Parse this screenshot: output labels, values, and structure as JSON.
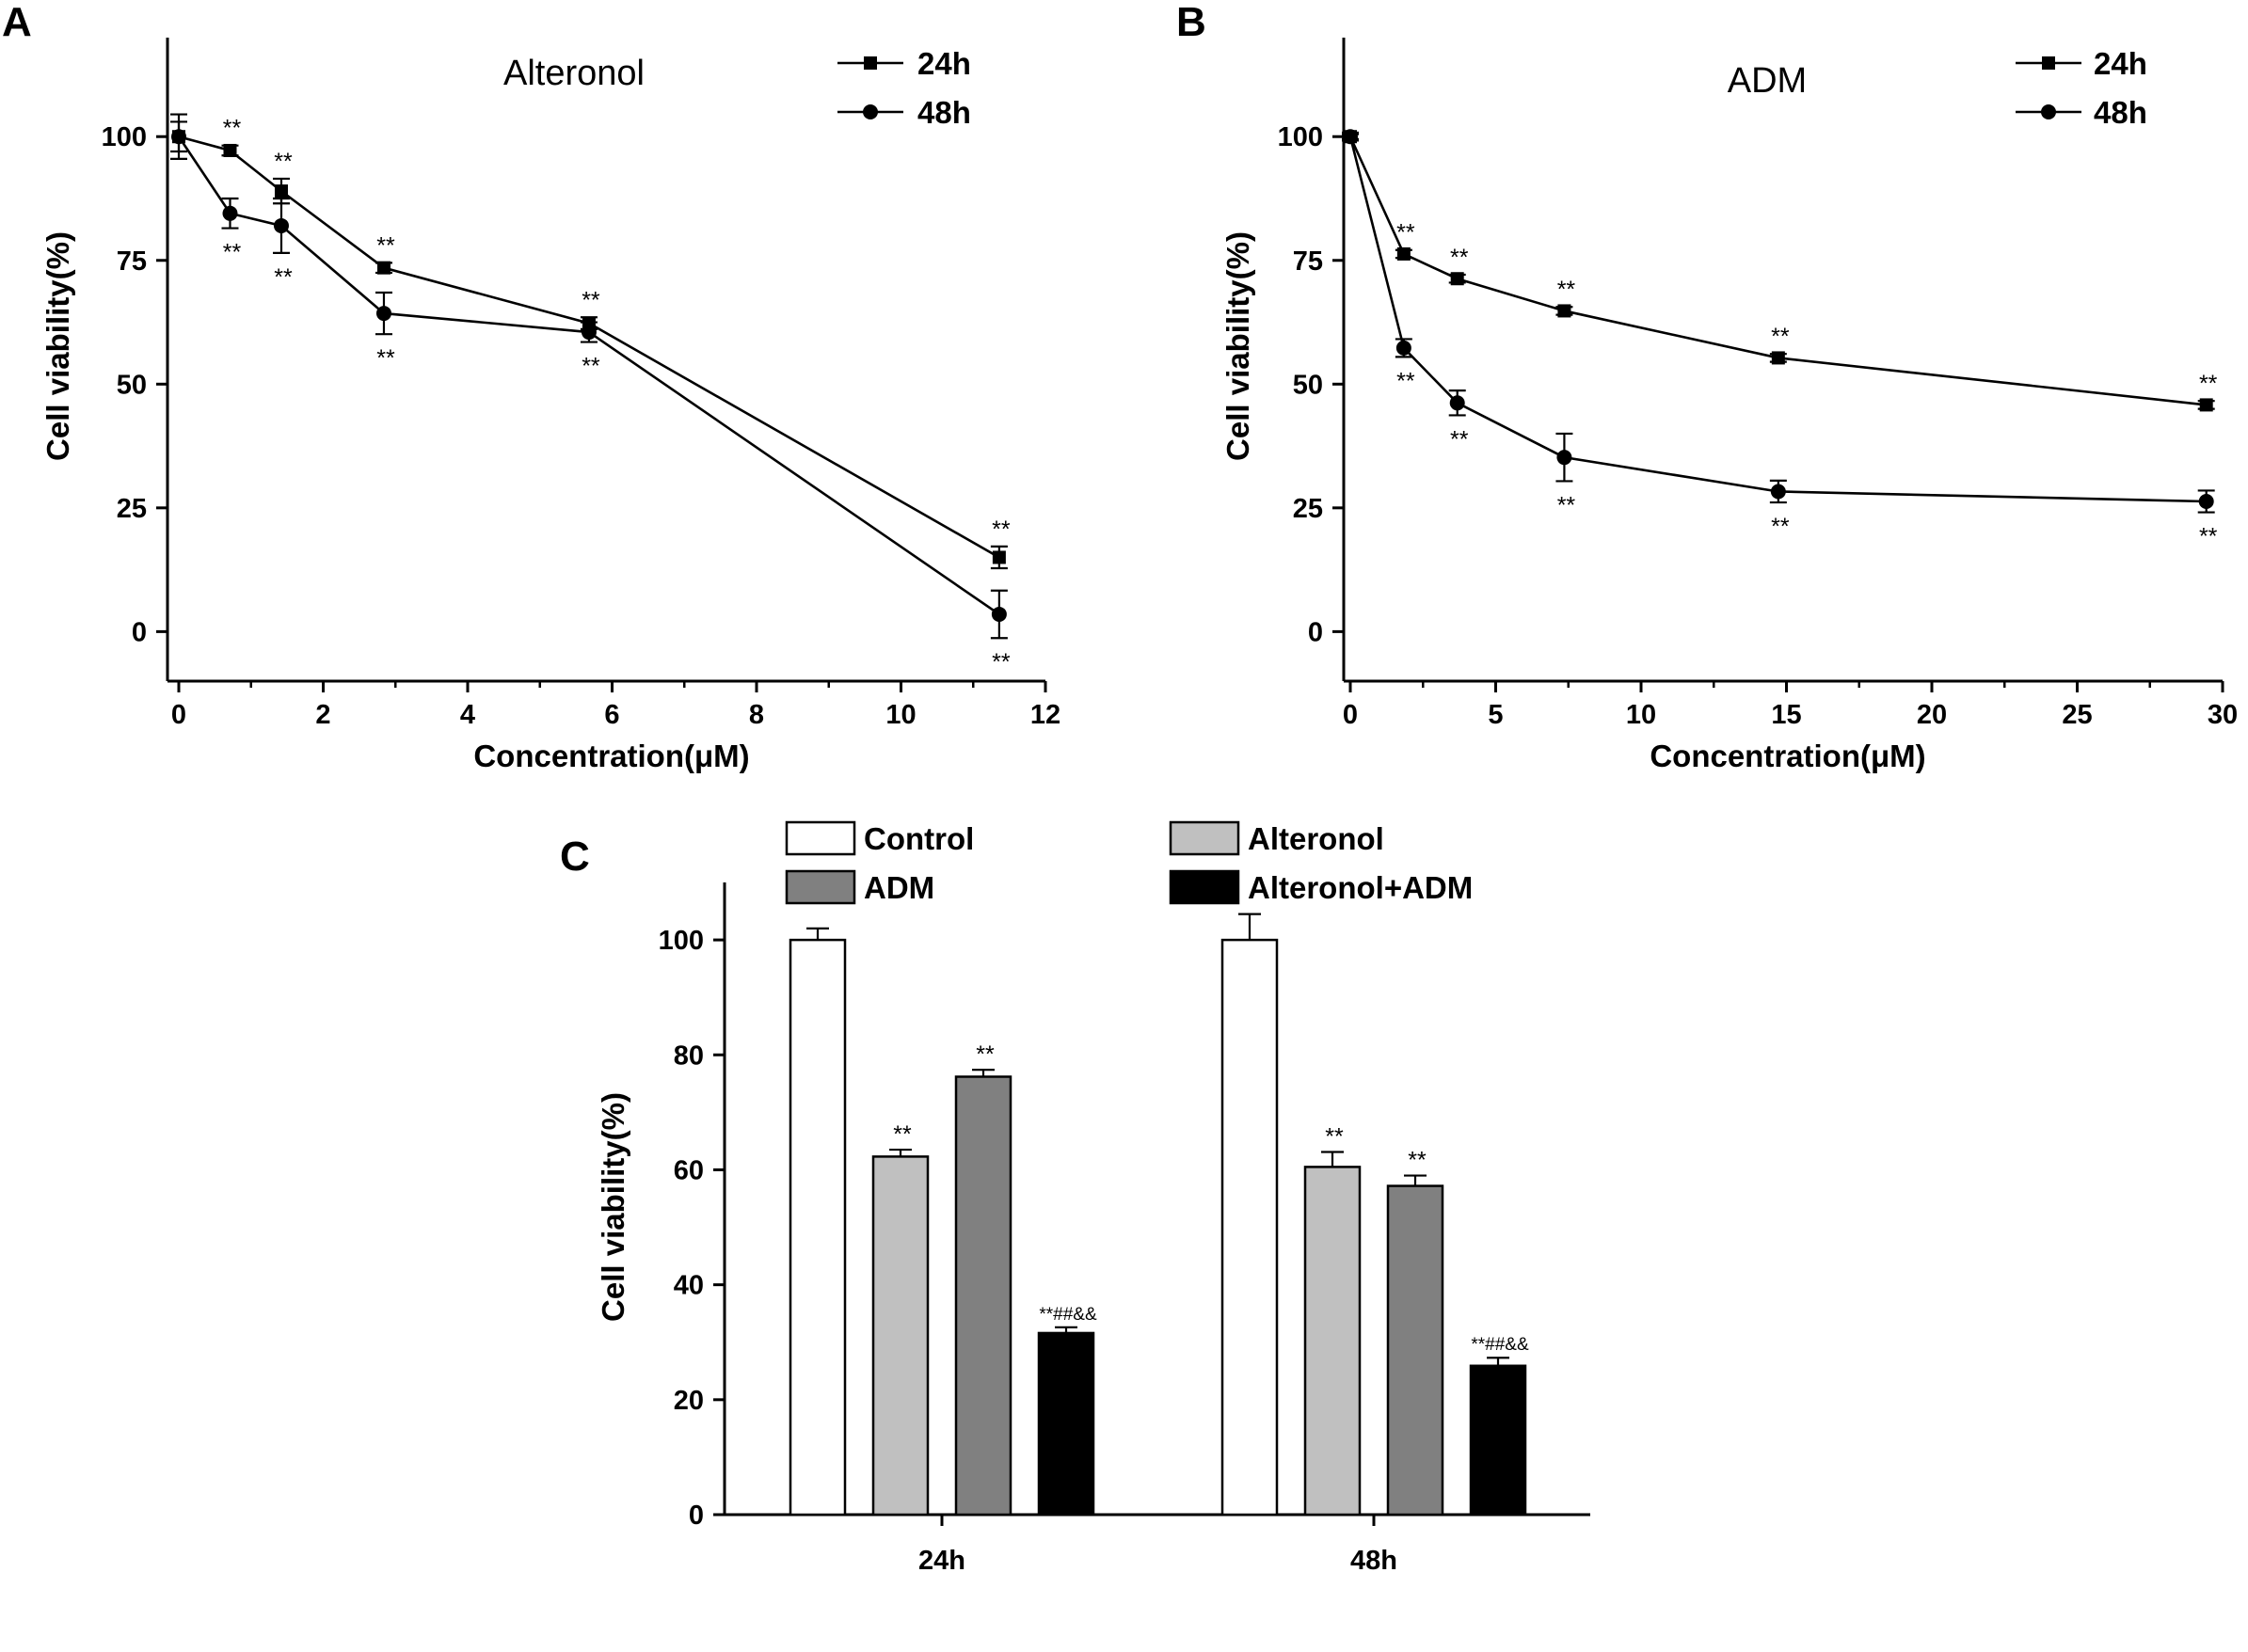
{
  "chart_data": [
    {
      "panel": "A",
      "type": "line",
      "title": "Alteronol",
      "xlabel": "Concentration(μM)",
      "ylabel": "Cell viability(%)",
      "xlim": [
        -0.2,
        12
      ],
      "ylim": [
        -10,
        120
      ],
      "xticks": [
        0,
        2,
        4,
        6,
        8,
        10,
        12
      ],
      "yticks": [
        0,
        25,
        50,
        75,
        100
      ],
      "legend_position": "top-right",
      "series": [
        {
          "name": "24h",
          "marker": "square",
          "x": [
            0,
            0.71,
            1.42,
            2.84,
            5.68,
            11.36
          ],
          "y": [
            100,
            97.2,
            89,
            73.5,
            62.3,
            15
          ],
          "err": [
            4.5,
            1.0,
            2.5,
            1.0,
            1.2,
            2.2
          ],
          "labels": [
            "",
            "**",
            "**",
            "**",
            "**",
            "**"
          ]
        },
        {
          "name": "48h",
          "marker": "circle",
          "x": [
            0,
            0.71,
            1.42,
            2.84,
            5.68,
            11.36
          ],
          "y": [
            100,
            84.5,
            82,
            64.3,
            60.5,
            3.5
          ],
          "err": [
            3.0,
            3.0,
            5.5,
            4.2,
            2.0,
            4.8
          ],
          "labels": [
            "",
            "**",
            "**",
            "**",
            "**",
            "**"
          ]
        }
      ]
    },
    {
      "panel": "B",
      "type": "line",
      "title": "ADM",
      "xlabel": "Concentration(μM)",
      "ylabel": "Cell viability(%)",
      "xlim": [
        -0.3,
        30
      ],
      "ylim": [
        -10,
        120
      ],
      "xticks": [
        0,
        5,
        10,
        15,
        20,
        25,
        30
      ],
      "yticks": [
        0,
        25,
        50,
        75,
        100
      ],
      "legend_position": "top-right",
      "series": [
        {
          "name": "24h",
          "marker": "square",
          "x": [
            0,
            1.84,
            3.68,
            7.36,
            14.72,
            29.44
          ],
          "y": [
            100,
            76.3,
            71.3,
            64.8,
            55.3,
            45.8
          ],
          "err": [
            0.8,
            0.8,
            0.8,
            0.8,
            0.8,
            0.8
          ],
          "labels": [
            "",
            "**",
            "**",
            "**",
            "**",
            "**"
          ]
        },
        {
          "name": "48h",
          "marker": "circle",
          "x": [
            0,
            1.84,
            3.68,
            7.36,
            14.72,
            29.44
          ],
          "y": [
            100,
            57.3,
            46.2,
            35.2,
            28.3,
            26.3
          ],
          "err": [
            0.5,
            1.8,
            2.5,
            4.8,
            2.2,
            2.2
          ],
          "labels": [
            "",
            "**",
            "**",
            "**",
            "**",
            "**"
          ]
        }
      ]
    },
    {
      "panel": "C",
      "type": "bar",
      "ylabel": "Cell viability(%)",
      "ylim": [
        0,
        110
      ],
      "yticks": [
        0,
        20,
        40,
        60,
        80,
        100
      ],
      "categories": [
        "24h",
        "48h"
      ],
      "legend_position": "top",
      "series": [
        {
          "name": "Control",
          "color": "#ffffff",
          "values": [
            100,
            100
          ],
          "err": [
            2.0,
            4.5
          ],
          "labels": [
            "",
            ""
          ]
        },
        {
          "name": "Alteronol",
          "color": "#c0c0c0",
          "values": [
            62.3,
            60.5
          ],
          "err": [
            1.2,
            2.6
          ],
          "labels": [
            "**",
            "**"
          ]
        },
        {
          "name": "ADM",
          "color": "#808080",
          "values": [
            76.2,
            57.2
          ],
          "err": [
            1.2,
            1.8
          ],
          "labels": [
            "**",
            "**"
          ]
        },
        {
          "name": "Alteronol+ADM",
          "color": "#000000",
          "values": [
            31.6,
            25.9
          ],
          "err": [
            1.0,
            1.4
          ],
          "labels": [
            "**##&&",
            "**##&&"
          ]
        }
      ]
    }
  ]
}
